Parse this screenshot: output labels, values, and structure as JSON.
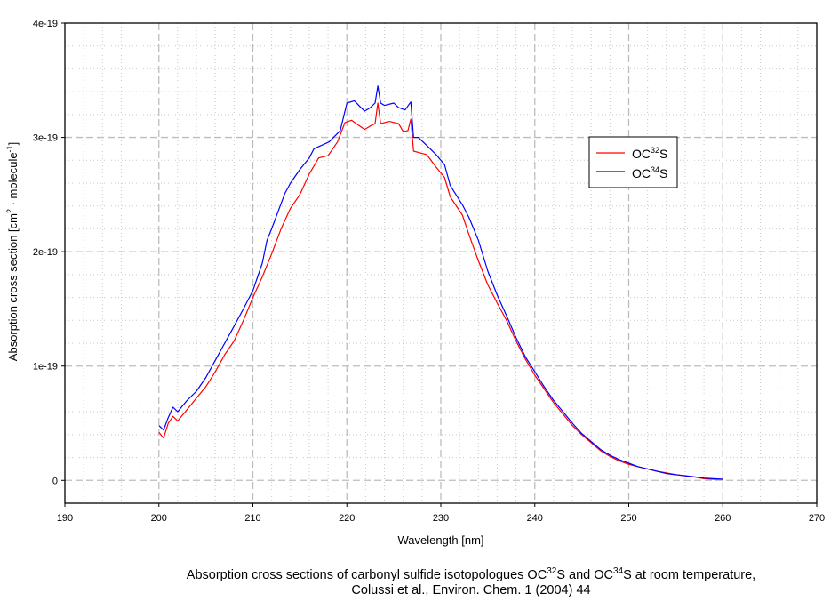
{
  "chart_data": {
    "type": "line",
    "title": "",
    "xlabel": "Wavelength [nm]",
    "ylabel": {
      "main": "Absorption cross section [cm",
      "sup1": "2",
      "mid": " · molecule",
      "sup2": "-1",
      "end": "]"
    },
    "xlim": [
      190,
      270
    ],
    "ylim": [
      -2e-20,
      4e-19
    ],
    "y_unit_scale": 1e-19,
    "x_ticks": [
      "190",
      "200",
      "210",
      "220",
      "230",
      "240",
      "250",
      "260",
      "270"
    ],
    "y_ticks": [
      {
        "v": 0,
        "label": "0"
      },
      {
        "v": 1,
        "label": "1e-19"
      },
      {
        "v": 2,
        "label": "2e-19"
      },
      {
        "v": 3,
        "label": "3e-19"
      },
      {
        "v": 4,
        "label": "4e-19"
      }
    ],
    "grid": true,
    "legend_position": "upper-right",
    "series": [
      {
        "name": "OC32S",
        "label_base": "OC",
        "label_sup": "32",
        "label_end": "S",
        "color": "#ff0000",
        "points": [
          [
            200,
            0.42
          ],
          [
            200.5,
            0.37
          ],
          [
            201,
            0.5
          ],
          [
            201.5,
            0.56
          ],
          [
            202,
            0.52
          ],
          [
            203,
            0.62
          ],
          [
            204,
            0.72
          ],
          [
            205,
            0.82
          ],
          [
            206,
            0.95
          ],
          [
            207,
            1.1
          ],
          [
            208,
            1.22
          ],
          [
            209,
            1.4
          ],
          [
            210,
            1.6
          ],
          [
            211,
            1.78
          ],
          [
            212,
            1.98
          ],
          [
            213,
            2.2
          ],
          [
            214,
            2.38
          ],
          [
            215,
            2.5
          ],
          [
            216,
            2.68
          ],
          [
            217,
            2.82
          ],
          [
            218,
            2.84
          ],
          [
            219,
            2.96
          ],
          [
            219.8,
            3.13
          ],
          [
            220.5,
            3.15
          ],
          [
            221,
            3.12
          ],
          [
            221.9,
            3.07
          ],
          [
            222.5,
            3.1
          ],
          [
            223,
            3.12
          ],
          [
            223.3,
            3.3
          ],
          [
            223.6,
            3.12
          ],
          [
            224.5,
            3.14
          ],
          [
            225.5,
            3.12
          ],
          [
            226,
            3.05
          ],
          [
            226.5,
            3.06
          ],
          [
            226.8,
            3.16
          ],
          [
            227.1,
            2.88
          ],
          [
            228,
            2.86
          ],
          [
            228.5,
            2.85
          ],
          [
            229.5,
            2.74
          ],
          [
            230.4,
            2.65
          ],
          [
            231,
            2.48
          ],
          [
            232.3,
            2.32
          ],
          [
            233,
            2.15
          ],
          [
            234,
            1.92
          ],
          [
            235,
            1.71
          ],
          [
            236,
            1.55
          ],
          [
            237,
            1.4
          ],
          [
            238,
            1.22
          ],
          [
            239,
            1.06
          ],
          [
            240,
            0.92
          ],
          [
            241,
            0.8
          ],
          [
            242,
            0.68
          ],
          [
            243,
            0.58
          ],
          [
            244,
            0.48
          ],
          [
            245,
            0.4
          ],
          [
            246,
            0.33
          ],
          [
            247,
            0.26
          ],
          [
            248,
            0.21
          ],
          [
            249,
            0.17
          ],
          [
            250,
            0.14
          ],
          [
            251,
            0.12
          ],
          [
            252,
            0.1
          ],
          [
            253,
            0.08
          ],
          [
            254,
            0.065
          ],
          [
            255,
            0.05
          ],
          [
            256,
            0.04
          ],
          [
            257,
            0.03
          ],
          [
            258,
            0.015
          ],
          [
            259,
            0.01
          ],
          [
            260,
            0.01
          ]
        ]
      },
      {
        "name": "OC34S",
        "label_base": "OC",
        "label_sup": "34",
        "label_end": "S",
        "color": "#0000ff",
        "points": [
          [
            200,
            0.48
          ],
          [
            200.5,
            0.44
          ],
          [
            201,
            0.55
          ],
          [
            201.5,
            0.64
          ],
          [
            202,
            0.6
          ],
          [
            203,
            0.7
          ],
          [
            204,
            0.78
          ],
          [
            205,
            0.9
          ],
          [
            206,
            1.05
          ],
          [
            207,
            1.2
          ],
          [
            208,
            1.35
          ],
          [
            209,
            1.5
          ],
          [
            210,
            1.66
          ],
          [
            211,
            1.9
          ],
          [
            211.5,
            2.1
          ],
          [
            212,
            2.2
          ],
          [
            213,
            2.42
          ],
          [
            213.4,
            2.51
          ],
          [
            214,
            2.6
          ],
          [
            215,
            2.72
          ],
          [
            216,
            2.82
          ],
          [
            216.5,
            2.9
          ],
          [
            217,
            2.92
          ],
          [
            218.1,
            2.96
          ],
          [
            219.3,
            3.06
          ],
          [
            220,
            3.3
          ],
          [
            220.8,
            3.32
          ],
          [
            221.5,
            3.26
          ],
          [
            221.9,
            3.23
          ],
          [
            222.5,
            3.26
          ],
          [
            223,
            3.3
          ],
          [
            223.3,
            3.45
          ],
          [
            223.6,
            3.3
          ],
          [
            224,
            3.28
          ],
          [
            225,
            3.3
          ],
          [
            225.5,
            3.26
          ],
          [
            226.2,
            3.24
          ],
          [
            226.8,
            3.31
          ],
          [
            227.1,
            3.0
          ],
          [
            227.6,
            3.0
          ],
          [
            228.5,
            2.93
          ],
          [
            229.5,
            2.85
          ],
          [
            230.4,
            2.76
          ],
          [
            231,
            2.58
          ],
          [
            232.3,
            2.41
          ],
          [
            233,
            2.3
          ],
          [
            234,
            2.1
          ],
          [
            235,
            1.83
          ],
          [
            236,
            1.62
          ],
          [
            237,
            1.44
          ],
          [
            238,
            1.25
          ],
          [
            239,
            1.08
          ],
          [
            240,
            0.95
          ],
          [
            241,
            0.82
          ],
          [
            242,
            0.7
          ],
          [
            243,
            0.6
          ],
          [
            244,
            0.5
          ],
          [
            245,
            0.41
          ],
          [
            246,
            0.34
          ],
          [
            247,
            0.27
          ],
          [
            248,
            0.22
          ],
          [
            249,
            0.18
          ],
          [
            250,
            0.15
          ],
          [
            251,
            0.12
          ],
          [
            252,
            0.1
          ],
          [
            253,
            0.08
          ],
          [
            254,
            0.06
          ],
          [
            255,
            0.05
          ],
          [
            256,
            0.04
          ],
          [
            257,
            0.03
          ],
          [
            258,
            0.02
          ],
          [
            259,
            0.015
          ],
          [
            260,
            0.01
          ]
        ]
      }
    ]
  },
  "caption": {
    "line1_a": "Absorption cross sections of carbonyl sulfide isotopologues OC",
    "line1_sup1": "32",
    "line1_b": "S and OC",
    "line1_sup2": "34",
    "line1_c": "S at room temperature,",
    "line2": "Colussi et al., Environ. Chem. 1 (2004) 44"
  }
}
